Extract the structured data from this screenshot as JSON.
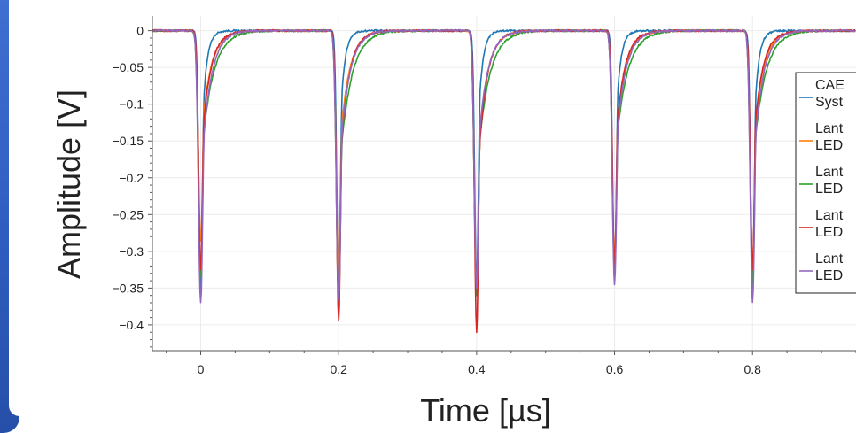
{
  "chart_data": {
    "type": "line",
    "title": "",
    "xlabel": "Time [µs]",
    "ylabel": "Amplitude [V]",
    "xlim": [
      -0.07,
      0.95
    ],
    "ylim": [
      -0.435,
      0.02
    ],
    "x_ticks": [
      0,
      0.2,
      0.4,
      0.6,
      0.8
    ],
    "x_tick_labels": [
      "0",
      "0.2",
      "0.4",
      "0.6",
      "0.8"
    ],
    "y_ticks": [
      0,
      -0.05,
      -0.1,
      -0.15,
      -0.2,
      -0.25,
      -0.3,
      -0.35,
      -0.4
    ],
    "y_tick_labels": [
      "0",
      "−0.05",
      "−0.1",
      "−0.15",
      "−0.2",
      "−0.25",
      "−0.3",
      "−0.35",
      "−0.4"
    ],
    "grid": true,
    "legend_position": "right",
    "pulse_times": [
      0,
      0.2,
      0.4,
      0.6,
      0.8
    ],
    "series": [
      {
        "name": "CAEN System",
        "legend_lines": [
          "CAE",
          "Syst"
        ],
        "color": "#1f77b4",
        "peaks": [
          -0.355,
          -0.345,
          -0.345,
          -0.335,
          -0.35
        ],
        "pulse_width": 0.005,
        "recovery_tau": 0.006
      },
      {
        "name": "Lanterna LED",
        "legend_lines": [
          "Lant",
          "LED"
        ],
        "color": "#ff7f0e",
        "peaks": [
          -0.285,
          -0.33,
          -0.355,
          -0.31,
          -0.32
        ],
        "pulse_width": 0.006,
        "recovery_tau": 0.013
      },
      {
        "name": "Lanterna LED",
        "legend_lines": [
          "Lant",
          "LED"
        ],
        "color": "#2ca02c",
        "peaks": [
          -0.335,
          -0.37,
          -0.36,
          -0.33,
          -0.345
        ],
        "pulse_width": 0.006,
        "recovery_tau": 0.016
      },
      {
        "name": "Lanterna LED",
        "legend_lines": [
          "Lant",
          "LED"
        ],
        "color": "#d62728",
        "peaks": [
          -0.325,
          -0.395,
          -0.41,
          -0.32,
          -0.325
        ],
        "pulse_width": 0.0055,
        "recovery_tau": 0.012
      },
      {
        "name": "Lanterna LED",
        "legend_lines": [
          "Lant",
          "LED"
        ],
        "color": "#9467bd",
        "peaks": [
          -0.37,
          -0.365,
          -0.35,
          -0.345,
          -0.37
        ],
        "pulse_width": 0.006,
        "recovery_tau": 0.013
      }
    ]
  }
}
